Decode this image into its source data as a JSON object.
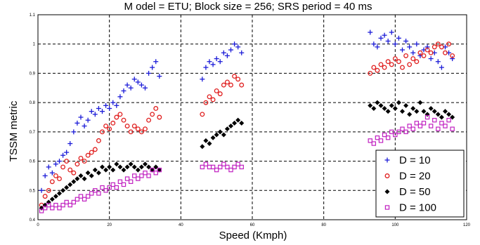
{
  "chart_data": {
    "type": "scatter",
    "title": "M odel = ETU;   Block size = 256; SRS period = 40 ms",
    "xlabel": "Speed (Kmph)",
    "ylabel": "TSSM metric",
    "xlim": [
      0,
      120
    ],
    "ylim": [
      0.4,
      1.1
    ],
    "xticks": [
      "0",
      "20",
      "40",
      "60",
      "80",
      "100",
      "120"
    ],
    "yticks": [
      "0.4",
      "0.5",
      "0.6",
      "0.7",
      "0.8",
      "0.9",
      "1",
      "1.1"
    ],
    "grid": true,
    "legend_position": "bottom-right",
    "series": [
      {
        "name": "D = 10",
        "marker": "plus",
        "color": "#1c1cd8",
        "x": [
          1.0,
          2.0,
          3.0,
          4.0,
          5.0,
          6.0,
          7.0,
          8.0,
          9.0,
          10.0,
          11.0,
          12.0,
          13.0,
          14.0,
          15.0,
          16.0,
          17.0,
          18.0,
          19.0,
          20.0,
          21.0,
          22.0,
          23.0,
          24.0,
          25.0,
          26.0,
          27.0,
          28.0,
          29.0,
          30.0,
          31.0,
          32.0,
          33.0,
          34.0,
          46.0,
          47.0,
          48.0,
          49.0,
          50.0,
          51.0,
          52.0,
          53.0,
          54.0,
          55.0,
          56.0,
          57.0,
          93.0,
          94.0,
          95.0,
          96.0,
          97.0,
          98.0,
          99.0,
          100.0,
          101.0,
          102.0,
          103.0,
          104.0,
          105.0,
          106.0,
          107.0,
          108.0,
          109.0,
          110.0,
          111.0,
          112.0,
          113.0,
          114.0,
          115.0,
          116.0
        ],
        "y": [
          0.5,
          0.55,
          0.58,
          0.56,
          0.59,
          0.6,
          0.62,
          0.63,
          0.66,
          0.7,
          0.73,
          0.75,
          0.72,
          0.74,
          0.77,
          0.76,
          0.78,
          0.77,
          0.79,
          0.78,
          0.8,
          0.79,
          0.82,
          0.84,
          0.86,
          0.85,
          0.88,
          0.87,
          0.86,
          0.85,
          0.9,
          0.92,
          0.94,
          0.89,
          0.88,
          0.92,
          0.94,
          0.93,
          0.95,
          0.94,
          0.97,
          0.96,
          0.98,
          1.0,
          0.99,
          0.97,
          1.04,
          1.0,
          0.99,
          1.02,
          1.03,
          1.01,
          1.04,
          1.0,
          1.02,
          0.98,
          1.01,
          0.99,
          0.97,
          1.0,
          0.96,
          0.98,
          0.99,
          0.95,
          0.97,
          0.94,
          0.92,
          0.99,
          0.97,
          0.95
        ]
      },
      {
        "name": "D = 20",
        "marker": "circle",
        "color": "#e02020",
        "x": [
          1.0,
          2.0,
          3.0,
          4.0,
          5.0,
          6.0,
          7.0,
          8.0,
          9.0,
          10.0,
          11.0,
          12.0,
          13.0,
          14.0,
          15.0,
          16.0,
          17.0,
          18.0,
          19.0,
          20.0,
          21.0,
          22.0,
          23.0,
          24.0,
          25.0,
          26.0,
          27.0,
          28.0,
          29.0,
          30.0,
          31.0,
          32.0,
          33.0,
          34.0,
          46.0,
          47.0,
          48.0,
          49.0,
          50.0,
          51.0,
          52.0,
          53.0,
          54.0,
          55.0,
          56.0,
          57.0,
          93.0,
          94.0,
          95.0,
          96.0,
          97.0,
          98.0,
          99.0,
          100.0,
          101.0,
          102.0,
          103.0,
          104.0,
          105.0,
          106.0,
          107.0,
          108.0,
          109.0,
          110.0,
          111.0,
          112.0,
          113.0,
          114.0,
          115.0,
          116.0
        ],
        "y": [
          0.45,
          0.48,
          0.5,
          0.53,
          0.55,
          0.54,
          0.58,
          0.6,
          0.57,
          0.56,
          0.59,
          0.61,
          0.6,
          0.62,
          0.63,
          0.64,
          0.67,
          0.7,
          0.72,
          0.71,
          0.73,
          0.75,
          0.76,
          0.74,
          0.72,
          0.7,
          0.72,
          0.71,
          0.7,
          0.71,
          0.74,
          0.76,
          0.78,
          0.75,
          0.76,
          0.8,
          0.82,
          0.81,
          0.84,
          0.83,
          0.86,
          0.87,
          0.86,
          0.89,
          0.88,
          0.86,
          0.9,
          0.92,
          0.91,
          0.93,
          0.92,
          0.94,
          0.93,
          0.95,
          0.94,
          0.92,
          0.96,
          0.93,
          0.95,
          0.94,
          0.97,
          0.96,
          0.98,
          0.97,
          0.99,
          1.0,
          0.99,
          0.97,
          1.0,
          0.96
        ]
      },
      {
        "name": "D = 50",
        "marker": "diamond",
        "color": "#000000",
        "x": [
          1.0,
          2.0,
          3.0,
          4.0,
          5.0,
          6.0,
          7.0,
          8.0,
          9.0,
          10.0,
          11.0,
          12.0,
          13.0,
          14.0,
          15.0,
          16.0,
          17.0,
          18.0,
          19.0,
          20.0,
          21.0,
          22.0,
          23.0,
          24.0,
          25.0,
          26.0,
          27.0,
          28.0,
          29.0,
          30.0,
          31.0,
          32.0,
          33.0,
          34.0,
          46.0,
          47.0,
          48.0,
          49.0,
          50.0,
          51.0,
          52.0,
          53.0,
          54.0,
          55.0,
          56.0,
          57.0,
          93.0,
          94.0,
          95.0,
          96.0,
          97.0,
          98.0,
          99.0,
          100.0,
          101.0,
          102.0,
          103.0,
          104.0,
          105.0,
          106.0,
          107.0,
          108.0,
          109.0,
          110.0,
          111.0,
          112.0,
          113.0,
          114.0,
          115.0,
          116.0
        ],
        "y": [
          0.44,
          0.45,
          0.46,
          0.47,
          0.48,
          0.49,
          0.5,
          0.51,
          0.52,
          0.53,
          0.54,
          0.55,
          0.54,
          0.56,
          0.55,
          0.57,
          0.56,
          0.58,
          0.57,
          0.58,
          0.57,
          0.59,
          0.58,
          0.57,
          0.58,
          0.59,
          0.58,
          0.57,
          0.58,
          0.59,
          0.58,
          0.57,
          0.58,
          0.57,
          0.65,
          0.67,
          0.66,
          0.68,
          0.69,
          0.7,
          0.69,
          0.71,
          0.72,
          0.73,
          0.74,
          0.73,
          0.79,
          0.78,
          0.8,
          0.79,
          0.78,
          0.77,
          0.79,
          0.78,
          0.8,
          0.77,
          0.79,
          0.76,
          0.78,
          0.77,
          0.8,
          0.77,
          0.76,
          0.78,
          0.77,
          0.76,
          0.75,
          0.77,
          0.76,
          0.75
        ]
      },
      {
        "name": "D = 100",
        "marker": "square",
        "color": "#c020c0",
        "x": [
          1.0,
          2.0,
          3.0,
          4.0,
          5.0,
          6.0,
          7.0,
          8.0,
          9.0,
          10.0,
          11.0,
          12.0,
          13.0,
          14.0,
          15.0,
          16.0,
          17.0,
          18.0,
          19.0,
          20.0,
          21.0,
          22.0,
          23.0,
          24.0,
          25.0,
          26.0,
          27.0,
          28.0,
          29.0,
          30.0,
          31.0,
          32.0,
          33.0,
          34.0,
          46.0,
          47.0,
          48.0,
          49.0,
          50.0,
          51.0,
          52.0,
          53.0,
          54.0,
          55.0,
          56.0,
          57.0,
          93.0,
          94.0,
          95.0,
          96.0,
          97.0,
          98.0,
          99.0,
          100.0,
          101.0,
          102.0,
          103.0,
          104.0,
          105.0,
          106.0,
          107.0,
          108.0,
          109.0,
          110.0,
          111.0,
          112.0,
          113.0,
          114.0,
          115.0,
          116.0
        ],
        "y": [
          0.43,
          0.44,
          0.45,
          0.44,
          0.45,
          0.44,
          0.45,
          0.46,
          0.45,
          0.46,
          0.47,
          0.48,
          0.47,
          0.48,
          0.49,
          0.5,
          0.49,
          0.51,
          0.5,
          0.51,
          0.52,
          0.51,
          0.53,
          0.52,
          0.54,
          0.53,
          0.55,
          0.54,
          0.55,
          0.56,
          0.55,
          0.57,
          0.56,
          0.57,
          0.58,
          0.59,
          0.58,
          0.58,
          0.57,
          0.58,
          0.59,
          0.58,
          0.57,
          0.58,
          0.59,
          0.58,
          0.67,
          0.66,
          0.68,
          0.67,
          0.69,
          0.68,
          0.7,
          0.69,
          0.7,
          0.71,
          0.7,
          0.72,
          0.71,
          0.73,
          0.72,
          0.73,
          0.75,
          0.72,
          0.74,
          0.71,
          0.73,
          0.72,
          0.74,
          0.71
        ]
      }
    ]
  }
}
